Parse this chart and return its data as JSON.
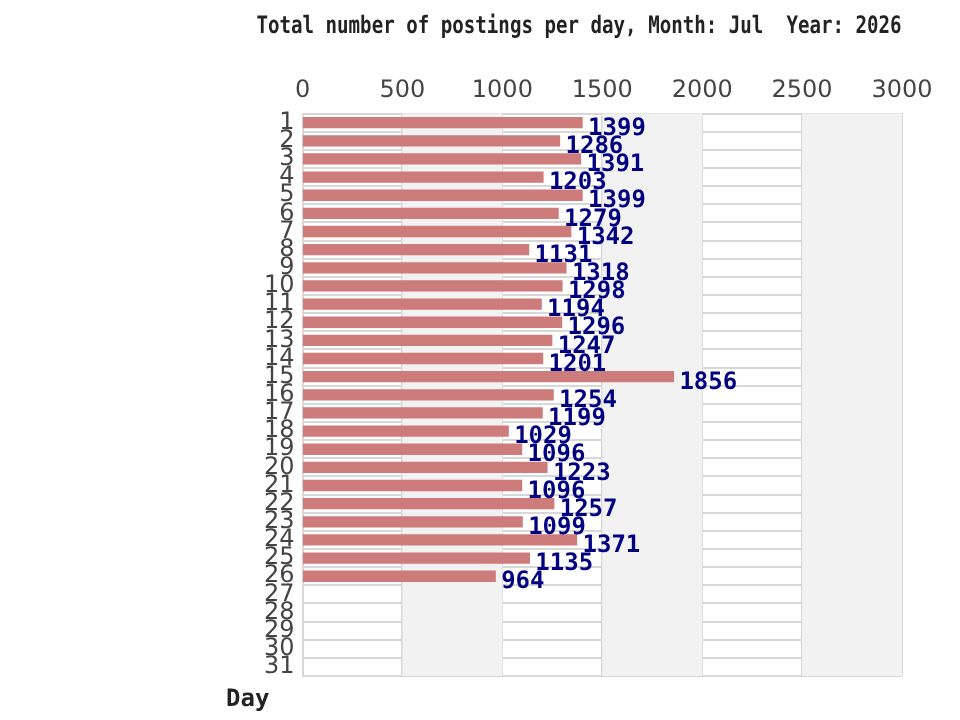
{
  "chart_data": {
    "type": "bar",
    "orientation": "horizontal",
    "title": "Total number of postings per day, Month: Jul  Year: 2026",
    "ylabel": "Day",
    "categories": [
      "1",
      "2",
      "3",
      "4",
      "5",
      "6",
      "7",
      "8",
      "9",
      "10",
      "11",
      "12",
      "13",
      "14",
      "15",
      "16",
      "17",
      "18",
      "19",
      "20",
      "21",
      "22",
      "23",
      "24",
      "25",
      "26",
      "27",
      "28",
      "29",
      "30",
      "31"
    ],
    "values": [
      1399,
      1286,
      1391,
      1203,
      1399,
      1279,
      1342,
      1131,
      1318,
      1298,
      1194,
      1296,
      1247,
      1201,
      1856,
      1254,
      1199,
      1029,
      1096,
      1223,
      1096,
      1257,
      1099,
      1371,
      1135,
      964,
      null,
      null,
      null,
      null,
      null
    ],
    "color": "#cd7b7b",
    "xlim": [
      0,
      3000
    ],
    "xticks": [
      0,
      500,
      1000,
      1500,
      2000,
      2500,
      3000
    ],
    "grid": true,
    "data_labels": true,
    "legend": false
  }
}
